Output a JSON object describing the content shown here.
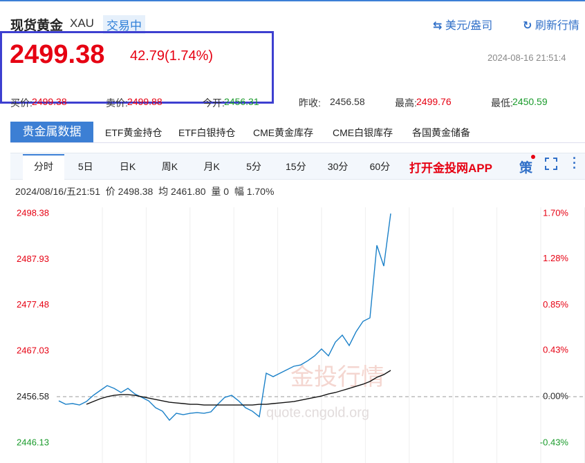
{
  "header": {
    "title": "现货黄金",
    "code": "XAU",
    "status": "交易中",
    "currency": "美元/盎司",
    "refresh": "刷新行情"
  },
  "quote": {
    "price": "2499.38",
    "change": "42.79(1.74%)",
    "time": "2024-08-16 21:51:4"
  },
  "stats": [
    {
      "label": "买价:",
      "value": "2499.38"
    },
    {
      "label": "卖价:",
      "value": "2499.88"
    },
    {
      "label": "今开:",
      "value": "2456.31"
    },
    {
      "label": "昨收:",
      "value": "2456.58"
    },
    {
      "label": "最高:",
      "value": "2499.76"
    },
    {
      "label": "最低:",
      "value": "2450.59"
    }
  ],
  "tabs": [
    "贵金属数据",
    "ETF黄金持仓",
    "ETF白银持仓",
    "CME黄金库存",
    "CME白银库存",
    "各国黄金储备"
  ],
  "periods": [
    "分时",
    "5日",
    "日K",
    "周K",
    "月K",
    "5分",
    "15分",
    "30分",
    "60分"
  ],
  "app_link": "打开金投网APP",
  "strategy": "策",
  "info": {
    "time": "2024/08/16/五21:51",
    "price_label": "价",
    "price": "2498.38",
    "avg_label": "均",
    "avg": "2461.80",
    "vol_label": "量",
    "vol": "0",
    "amp_label": "幅",
    "amp": "1.70%"
  },
  "watermark": {
    "brand": "金投行情",
    "url": "quote.cngold.org"
  },
  "chart_data": {
    "type": "line",
    "ylim": [
      2446.13,
      2498.38
    ],
    "yticks": [
      2446.13,
      2456.58,
      2467.03,
      2477.48,
      2487.93,
      2498.38
    ],
    "y2lim": [
      -0.43,
      1.7
    ],
    "y2ticks": [
      {
        "value": -0.43,
        "label": "-0.43%"
      },
      {
        "value": 0,
        "label": "0.00%"
      },
      {
        "value": 0.43,
        "label": "0.43%"
      },
      {
        "value": 0.85,
        "label": "0.85%"
      },
      {
        "value": 1.28,
        "label": "1.28%"
      },
      {
        "value": 1.7,
        "label": "1.70%"
      }
    ],
    "series": [
      {
        "color": "#1a80c8",
        "values": [
          2455.72,
          2454.94,
          2455.1,
          2454.78,
          2455.57,
          2456.98,
          2458.09,
          2459.19,
          2458.56,
          2457.62,
          2458.56,
          2457.3,
          2456.51,
          2455.72,
          2454.15,
          2453.36,
          2451.32,
          2452.89,
          2452.58,
          2452.89,
          2453.05,
          2452.89,
          2453.21,
          2454.94,
          2456.51,
          2456.98,
          2455.72,
          2454.15,
          2453.36,
          2452.1,
          2462.02,
          2461.23,
          2462.02,
          2462.81,
          2463.6,
          2463.91,
          2464.85,
          2465.96,
          2467.53,
          2465.96,
          2469.1,
          2470.68,
          2468.32,
          2471.47,
          2473.83,
          2474.62,
          2491.14,
          2486.42,
          2498.38
        ]
      },
      {
        "color": "#111111",
        "values": [
          null,
          null,
          null,
          null,
          2454.94,
          2455.57,
          2456.2,
          2456.67,
          2456.98,
          2457.14,
          2457.14,
          2456.98,
          2456.67,
          2456.35,
          2456.04,
          2455.72,
          2455.41,
          2455.25,
          2455.1,
          2454.94,
          2454.94,
          2454.78,
          2454.78,
          2454.78,
          2454.78,
          2454.78,
          2454.78,
          2454.78,
          2454.78,
          2454.94,
          2454.94,
          2455.1,
          2455.25,
          2455.41,
          2455.57,
          2455.88,
          2456.2,
          2456.51,
          2456.83,
          2457.3,
          2457.62,
          2458.09,
          2458.56,
          2459.04,
          2459.51,
          2460.14,
          2461.08,
          2461.7,
          2462.65
        ]
      }
    ]
  }
}
